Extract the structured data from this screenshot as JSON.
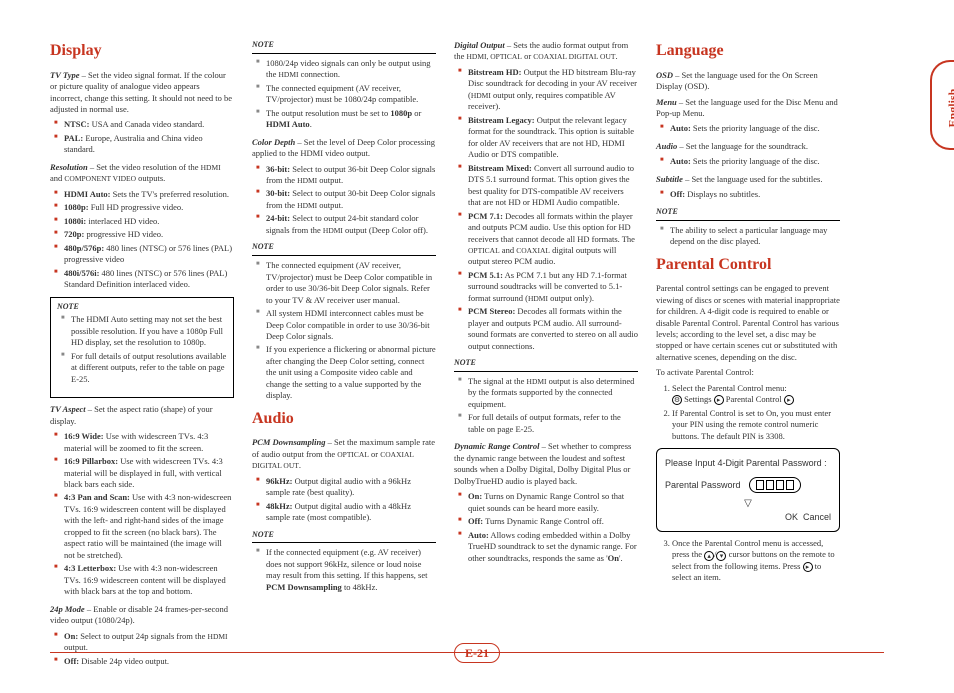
{
  "side_tab": "English",
  "page_number": "E-21",
  "col1": {
    "h_display": "Display",
    "tvtype_term": "TV Type",
    "tvtype_desc": " – Set the video signal format. If the colour or picture quality of analogue video appears incorrect, change this setting. It should not need to be adjusted in normal use.",
    "tvtype_items": [
      "<b>NTSC:</b> USA and Canada video standard.",
      "<b>PAL:</b> Europe, Australia and China video standard."
    ],
    "res_term": "Resolution",
    "res_desc": " – Set the video resolution of the <span class='sc'>HDMI</span> and <span class='sc'>COMPONENT VIDEO</span> outputs.",
    "res_items": [
      "<b>HDMI Auto:</b> Sets the TV's preferred resolution.",
      "<b>1080p:</b> Full HD progressive video.",
      "<b>1080i:</b> interlaced HD video.",
      "<b>720p:</b> progressive HD video.",
      "<b>480p/576p:</b> 480 lines (NTSC) or 576 lines (PAL) progressive video",
      "<b>480i/576i:</b> 480 lines (NTSC) or 576 lines (PAL) Standard Definition interlaced video."
    ],
    "note1_items": [
      "The HDMI Auto setting may not set the best possible resolution. If you have a 1080p Full HD display, set the resolution to 1080p.",
      "For full details of output resolutions available at different outputs, refer to the table on page E-25."
    ],
    "aspect_term": "TV Aspect",
    "aspect_desc": " – Set the aspect ratio (shape) of your display.",
    "aspect_items": [
      "<b>16:9 Wide:</b> Use with widescreen TVs. 4:3 material will be zoomed to fit the screen.",
      "<b>16:9 Pillarbox:</b> Use with widescreen TVs. 4:3 material will be displayed in full, with vertical black bars each side.",
      "<b>4:3 Pan and Scan:</b> Use with 4:3 non-widescreen TVs. 16:9 widescreen content will be displayed with the left- and right-hand sides of the image cropped to fit the screen (no black bars). The aspect ratio will be maintained (the image will not be stretched).",
      "<b>4:3 Letterbox:</b> Use with 4:3 non-widescreen TVs. 16:9 widescreen content will be displayed with black bars at the top and bottom."
    ],
    "mode24_term": "24p Mode",
    "mode24_desc": " – Enable or disable 24 frames-per-second video output (1080/24p).",
    "mode24_items": [
      "<b>On:</b> Select to output 24p signals from the <span class='sc'>HDMI</span> output.",
      "<b>Off:</b> Disable 24p video output."
    ]
  },
  "col2": {
    "note2_items": [
      "1080/24p video signals can only be output using the <span class='sc'>HDMI</span> connection.",
      "The connected equipment (AV receiver, TV/projector) must be 1080/24p compatible.",
      "The output resolution must be set to <b>1080p</b> or <b>HDMI Auto</b>."
    ],
    "cd_term": "Color Depth",
    "cd_desc": " – Set the level of Deep Color processing applied to the HDMI video output.",
    "cd_items": [
      "<b>36-bit:</b> Select to output 36-bit Deep Color signals from the <span class='sc'>HDMI</span> output.",
      "<b>30-bit:</b> Select to output 30-bit Deep Color signals from the <span class='sc'>HDMI</span> output.",
      "<b>24-bit:</b> Select to output 24-bit standard color signals from the <span class='sc'>HDMI</span> output (Deep Color off)."
    ],
    "note3_items": [
      "The connected equipment (AV receiver, TV/projector) must be Deep Color compatible in order to use 30/36-bit Deep Color signals. Refer to your TV & AV receiver user manual.",
      "All system HDMI interconnect cables must be Deep Color compatible in order to use 30/36-bit Deep Color signals.",
      "If you experience a flickering or abnormal picture after changing the Deep Color setting, connect the unit using a Composite video cable and change the setting to a value supported by the display."
    ],
    "h_audio": "Audio",
    "pcm_term": "PCM Downsampling",
    "pcm_desc": " – Set the maximum sample rate of audio output from the <span class='sc'>OPTICAL</span> or <span class='sc'>COAXIAL DIGITAL OUT</span>.",
    "pcm_items": [
      "<b>96kHz:</b> Output digital audio with a 96kHz sample rate (best quality).",
      "<b>48kHz:</b> Output digital audio with a 48kHz sample rate (most compatible)."
    ],
    "note4_items": [
      "If the connected equipment (e.g. AV receiver) does not support 96kHz, silence or loud noise may result from this setting. If this happens, set <b>PCM Downsampling</b> to 48kHz."
    ]
  },
  "col3": {
    "do_term": "Digital Output",
    "do_desc": " – Sets the audio format output from the <span class='sc'>HDMI, OPTICAL</span> or <span class='sc'>COAXIAL DIGITAL OUT</span>.",
    "do_items": [
      "<b>Bitstream HD:</b> Output the HD bitstream Blu-ray Disc soundtrack for decoding in your AV receiver (<span class='sc'>HDMI</span> output only, requires compatible AV receiver).",
      "<b>Bitstream Legacy:</b> Output the relevant legacy format for the soundtrack. This option is suitable for older AV receivers that are not HD, HDMI Audio or DTS compatible.",
      "<b>Bitstream Mixed:</b> Convert all surround audio to DTS 5.1 surround format. This option gives the best quality for DTS-compatible AV receivers that are not HD or HDMI Audio compatible.",
      "<b>PCM 7.1:</b> Decodes all formats within the player and outputs PCM audio. Use this option for HD receivers that cannot decode all HD formats. The <span class='sc'>OPTICAL</span> and <span class='sc'>COAXIAL</span> digital outputs will output stereo PCM audio.",
      "<b>PCM 5.1:</b> As PCM 7.1 but any HD 7.1-format surround soudtracks will be converted to 5.1-format surround (<span class='sc'>HDMI</span> output only).",
      "<b>PCM Stereo:</b> Decodes all formats within the player and outputs PCM audio. All surround-sound formats are converted to stereo on all audio output connections."
    ],
    "note5_items": [
      "The signal at the <span class='sc'>HDMI</span> output is also determined by the formats supported by the connected equipment.",
      "For full details of output formats, refer to the table on page E-25."
    ],
    "drc_term": "Dynamic Range Control",
    "drc_desc": " – Set whether to compress the dynamic range between the loudest and softest sounds when a Dolby Digital, Dolby Digital Plus or DolbyTrueHD audio is played back.",
    "drc_items": [
      "<b>On:</b> Turns on Dynamic Range Control so that quiet sounds can be heard more easily.",
      "<b>Off:</b> Turns Dynamic Range Control off.",
      "<b>Auto:</b> Allows coding embedded within a Dolby TrueHD soundtrack to set the dynamic range. For other soundtracks, responds the same as '<b>On</b>'."
    ]
  },
  "col4": {
    "h_lang": "Language",
    "osd_term": "OSD",
    "osd_desc": " – Set the language used for the On Screen Display (OSD).",
    "menu_term": "Menu",
    "menu_desc": " – Set the language used for the Disc Menu and Pop-up Menu.",
    "menu_items": [
      "<b>Auto:</b> Sets the priority language of the disc."
    ],
    "audio_term": "Audio",
    "audio_desc": " – Set the language for the soundtrack.",
    "audio_items": [
      "<b>Auto:</b> Sets the priority language of the disc."
    ],
    "sub_term": "Subtitle",
    "sub_desc": " – Set the language used for the subtitles.",
    "sub_items": [
      "<b>Off:</b> Displays no subtitles."
    ],
    "note6_items": [
      "The ability to select a particular language may depend on the disc played."
    ],
    "h_parental": "Parental Control",
    "pc_desc": "Parental control settings can be engaged to prevent viewing of discs or scenes with material inappropriate for children. A 4-digit code is required to enable or disable Parental Control. Parental Control has various levels; according to the level set, a disc may be stopped or have certain scenes cut or substituted with alternative scenes, depending on the disc.",
    "pc_activate": "To activate Parental Control:",
    "pc_step1": "Select the Parental Control menu:",
    "pc_step1b": "Settings <span class='nav-icon'>▸</span> Parental Control <span class='nav-icon'>▸</span>",
    "pc_step2": "If Parental Control is set to On, you must enter your PIN using the remote control numeric buttons. The default PIN is 3308.",
    "dialog_title": "Please Input 4-Digit Parental Password :",
    "dialog_label": "Parental Password",
    "dialog_ok": "OK",
    "dialog_cancel": "Cancel",
    "pc_step3": "Once the Parental Control menu is accessed, press the <span class='nav-icon'>▴</span>/<span class='nav-icon'>▾</span> cursor buttons on the remote to select from the following items. Press <span class='nav-icon'>▸</span> to select an item."
  }
}
